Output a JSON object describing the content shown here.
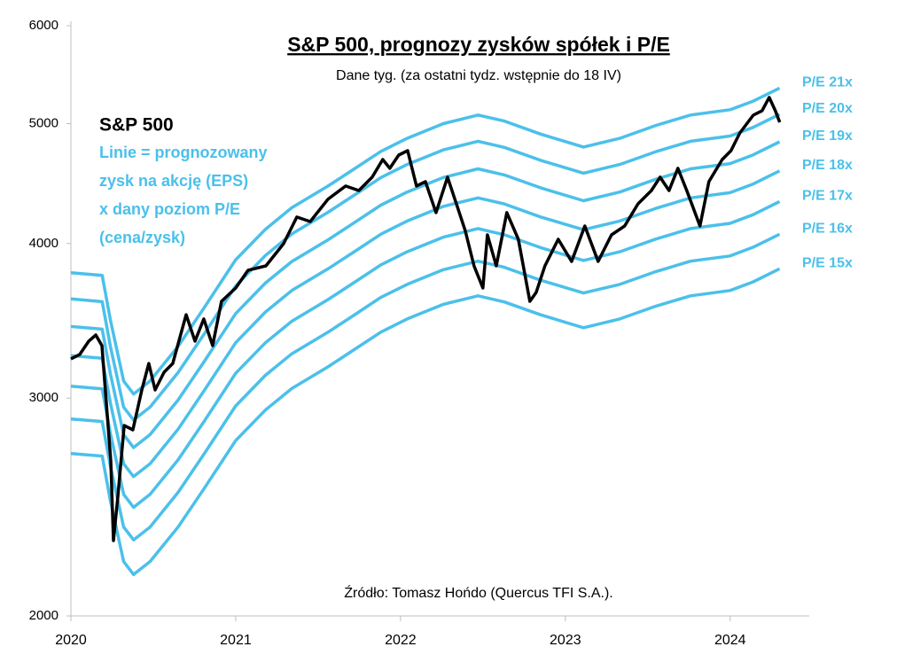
{
  "chart_data": {
    "type": "line",
    "title": "S&P 500, prognozy zysków spółek i P/E",
    "subtitle": "Dane tyg. (za ostatni tydz. wstępnie do 18 IV)",
    "annotation_lines": [
      "Linie = prognozowany",
      "zysk na akcję (EPS)",
      "x dany poziom P/E",
      "(cena/zysk)"
    ],
    "source": "Źródło: Tomasz Hońdo (Quercus TFI S.A.).",
    "log_scale": true,
    "xlim": [
      2020,
      2024.48
    ],
    "xticks": [
      2020,
      2021,
      2022,
      2023,
      2024
    ],
    "ylim": [
      2000,
      6000
    ],
    "yticks": [
      2000,
      3000,
      4000,
      5000,
      6000
    ],
    "grid": false,
    "series": [
      {
        "name": "S&P 500",
        "color": "#000000",
        "x": [
          2020.0,
          2020.054,
          2020.108,
          2020.151,
          2020.188,
          2020.215,
          2020.242,
          2020.258,
          2020.285,
          2020.323,
          2020.376,
          2020.43,
          2020.473,
          2020.511,
          2020.565,
          2020.618,
          2020.699,
          2020.753,
          2020.806,
          2020.86,
          2020.914,
          2021.0,
          2021.075,
          2021.183,
          2021.29,
          2021.371,
          2021.452,
          2021.559,
          2021.667,
          2021.747,
          2021.828,
          2021.892,
          2021.935,
          2021.989,
          2022.043,
          2022.097,
          2022.151,
          2022.215,
          2022.285,
          2022.339,
          2022.392,
          2022.446,
          2022.5,
          2022.527,
          2022.581,
          2022.645,
          2022.715,
          2022.785,
          2022.823,
          2022.876,
          2022.957,
          2023.038,
          2023.118,
          2023.199,
          2023.28,
          2023.36,
          2023.441,
          2023.522,
          2023.575,
          2023.629,
          2023.683,
          2023.737,
          2023.817,
          2023.871,
          2023.952,
          2024.005,
          2024.059,
          2024.14,
          2024.194,
          2024.237,
          2024.274,
          2024.301
        ],
        "values": [
          3227,
          3254,
          3335,
          3374,
          3308,
          2971,
          2669,
          2301,
          2499,
          2851,
          2828,
          3046,
          3200,
          3046,
          3148,
          3200,
          3504,
          3335,
          3476,
          3308,
          3592,
          3682,
          3806,
          3837,
          3999,
          4202,
          4167,
          4343,
          4452,
          4415,
          4526,
          4677,
          4601,
          4716,
          4755,
          4452,
          4489,
          4237,
          4526,
          4307,
          4099,
          3837,
          3682,
          4065,
          3837,
          4237,
          4032,
          3592,
          3652,
          3837,
          4032,
          3869,
          4133,
          3869,
          4065,
          4133,
          4307,
          4415,
          4526,
          4415,
          4601,
          4415,
          4133,
          4489,
          4677,
          4755,
          4914,
          5079,
          5122,
          5250,
          5122,
          5013
        ]
      },
      {
        "name": "P/E 21x",
        "color": "#4bc0ea",
        "x": [
          2020.0,
          2020.19,
          2020.24,
          2020.32,
          2020.38,
          2020.48,
          2020.65,
          2020.81,
          2021.0,
          2021.18,
          2021.34,
          2021.56,
          2021.72,
          2021.88,
          2022.04,
          2022.26,
          2022.47,
          2022.63,
          2022.85,
          2023.11,
          2023.33,
          2023.55,
          2023.76,
          2024.0,
          2024.14,
          2024.3
        ],
        "values": [
          3789,
          3770,
          3468,
          3097,
          3023,
          3097,
          3303,
          3552,
          3881,
          4107,
          4276,
          4452,
          4597,
          4748,
          4865,
          5000,
          5081,
          5024,
          4904,
          4787,
          4865,
          4984,
          5081,
          5131,
          5214,
          5342
        ]
      },
      {
        "name": "P/E 20x",
        "color": "#4bc0ea",
        "x": [
          2020.0,
          2020.19,
          2020.24,
          2020.32,
          2020.38,
          2020.48,
          2020.65,
          2020.81,
          2021.0,
          2021.18,
          2021.34,
          2021.56,
          2021.72,
          2021.88,
          2022.04,
          2022.26,
          2022.47,
          2022.63,
          2022.85,
          2023.11,
          2023.33,
          2023.55,
          2023.76,
          2024.0,
          2024.14,
          2024.3
        ],
        "values": [
          3608,
          3590,
          3302,
          2950,
          2880,
          2950,
          3146,
          3382,
          3696,
          3912,
          4072,
          4240,
          4378,
          4522,
          4634,
          4762,
          4839,
          4784,
          4670,
          4560,
          4634,
          4746,
          4839,
          4886,
          4966,
          5088
        ]
      },
      {
        "name": "P/E 19x",
        "color": "#4bc0ea",
        "x": [
          2020.0,
          2020.19,
          2020.24,
          2020.32,
          2020.38,
          2020.48,
          2020.65,
          2020.81,
          2021.0,
          2021.18,
          2021.34,
          2021.56,
          2021.72,
          2021.88,
          2022.04,
          2022.26,
          2022.47,
          2022.63,
          2022.85,
          2023.11,
          2023.33,
          2023.55,
          2023.76,
          2024.0,
          2024.14,
          2024.3
        ],
        "values": [
          3428,
          3411,
          3137,
          2803,
          2736,
          2803,
          2989,
          3213,
          3511,
          3716,
          3868,
          4028,
          4159,
          4296,
          4402,
          4524,
          4597,
          4545,
          4437,
          4332,
          4402,
          4509,
          4597,
          4642,
          4718,
          4834
        ]
      },
      {
        "name": "P/E 18x",
        "color": "#4bc0ea",
        "x": [
          2020.0,
          2020.19,
          2020.24,
          2020.32,
          2020.38,
          2020.48,
          2020.65,
          2020.81,
          2021.0,
          2021.18,
          2021.34,
          2021.56,
          2021.72,
          2021.88,
          2022.04,
          2022.26,
          2022.47,
          2022.63,
          2022.85,
          2023.11,
          2023.33,
          2023.55,
          2023.76,
          2024.0,
          2024.14,
          2024.3
        ],
        "values": [
          3247,
          3231,
          2972,
          2655,
          2592,
          2655,
          2831,
          3044,
          3326,
          3521,
          3665,
          3816,
          3940,
          4070,
          4171,
          4286,
          4355,
          4306,
          4203,
          4104,
          4171,
          4271,
          4355,
          4397,
          4469,
          4579
        ]
      },
      {
        "name": "P/E 17x",
        "color": "#4bc0ea",
        "x": [
          2020.0,
          2020.19,
          2020.24,
          2020.32,
          2020.38,
          2020.48,
          2020.65,
          2020.81,
          2021.0,
          2021.18,
          2021.34,
          2021.56,
          2021.72,
          2021.88,
          2022.04,
          2022.26,
          2022.47,
          2022.63,
          2022.85,
          2023.11,
          2023.33,
          2023.55,
          2023.76,
          2024.0,
          2024.14,
          2024.3
        ],
        "values": [
          3067,
          3052,
          2807,
          2508,
          2448,
          2508,
          2674,
          2875,
          3142,
          3325,
          3461,
          3604,
          3721,
          3844,
          3939,
          4048,
          4113,
          4066,
          3970,
          3876,
          3939,
          4034,
          4113,
          4153,
          4221,
          4325
        ]
      },
      {
        "name": "P/E 16x",
        "color": "#4bc0ea",
        "x": [
          2020.0,
          2020.19,
          2020.24,
          2020.32,
          2020.38,
          2020.48,
          2020.65,
          2020.81,
          2021.0,
          2021.18,
          2021.34,
          2021.56,
          2021.72,
          2021.88,
          2022.04,
          2022.26,
          2022.47,
          2022.63,
          2022.85,
          2023.11,
          2023.33,
          2023.55,
          2023.76,
          2024.0,
          2024.14,
          2024.3
        ],
        "values": [
          2886,
          2872,
          2642,
          2360,
          2304,
          2360,
          2517,
          2706,
          2957,
          3130,
          3258,
          3392,
          3502,
          3618,
          3707,
          3810,
          3871,
          3827,
          3736,
          3648,
          3707,
          3797,
          3871,
          3909,
          3973,
          4070
        ]
      },
      {
        "name": "P/E 15x",
        "color": "#4bc0ea",
        "x": [
          2020.0,
          2020.19,
          2020.24,
          2020.32,
          2020.38,
          2020.48,
          2020.65,
          2020.81,
          2021.0,
          2021.18,
          2021.34,
          2021.56,
          2021.72,
          2021.88,
          2022.04,
          2022.26,
          2022.47,
          2022.63,
          2022.85,
          2023.11,
          2023.33,
          2023.55,
          2023.76,
          2024.0,
          2024.14,
          2024.3
        ],
        "values": [
          2706,
          2693,
          2477,
          2213,
          2160,
          2213,
          2360,
          2537,
          2772,
          2934,
          3054,
          3180,
          3284,
          3392,
          3476,
          3572,
          3629,
          3588,
          3503,
          3420,
          3476,
          3560,
          3629,
          3665,
          3725,
          3816
        ]
      }
    ]
  }
}
